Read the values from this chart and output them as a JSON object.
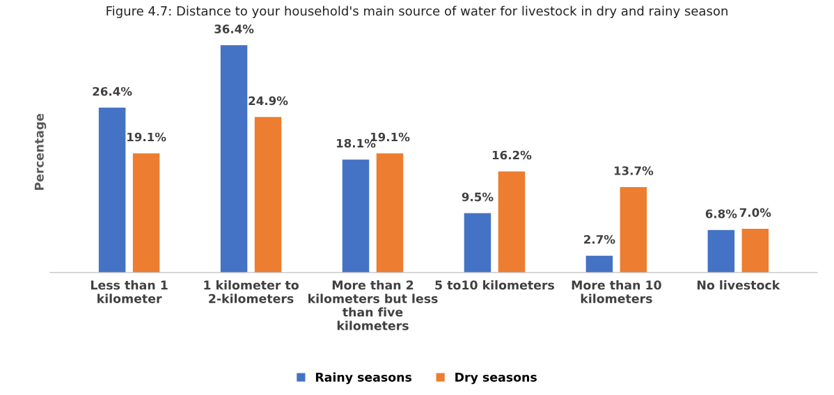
{
  "chart_data": {
    "type": "bar",
    "title": "Figure 4.7: Distance to your household's main source of water for livestock in dry and rainy season",
    "ylabel": "Percentage",
    "categories": [
      "Less than 1 kilometer",
      "1 kilometer to 2-kilometers",
      "More than 2 kilometers but less than five kilometers",
      "5 to10 kilometers",
      "More than 10 kilometers",
      "No livestock"
    ],
    "series": [
      {
        "name": "Rainy seasons",
        "color": "#4472c4",
        "values": [
          26.4,
          36.4,
          18.1,
          9.5,
          2.7,
          6.8
        ],
        "value_labels": [
          "26.4%",
          "36.4%",
          "18.1%",
          "9.5%",
          "2.7%",
          "6.8%"
        ]
      },
      {
        "name": "Dry seasons",
        "color": "#ed7d31",
        "values": [
          19.1,
          24.9,
          19.1,
          16.2,
          13.7,
          7.0
        ],
        "value_labels": [
          "19.1%",
          "24.9%",
          "19.1%",
          "16.2%",
          "13.7%",
          "7.0%"
        ]
      }
    ],
    "legend": "bottom",
    "grid": false
  }
}
